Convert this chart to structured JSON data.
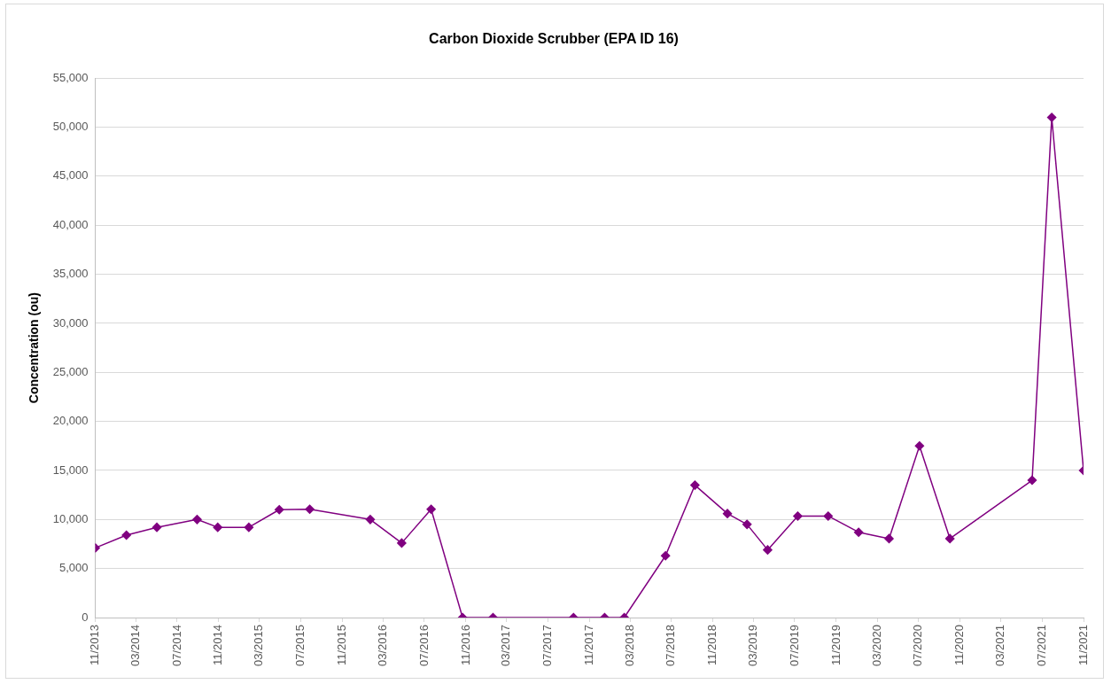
{
  "chart_data": {
    "type": "line",
    "title": "Carbon Dioxide Scrubber (EPA ID 16)",
    "ylabel": "Concentration (ou)",
    "x": [
      "2013-11-01",
      "2014-02-01",
      "2014-05-02",
      "2014-08-29",
      "2014-10-29",
      "2015-01-29",
      "2015-04-29",
      "2015-07-28",
      "2016-01-23",
      "2016-04-25",
      "2016-07-21",
      "2016-10-22",
      "2017-01-20",
      "2017-09-15",
      "2017-12-16",
      "2018-02-12",
      "2018-06-14",
      "2018-09-09",
      "2018-12-14",
      "2019-02-10",
      "2019-04-12",
      "2019-07-10",
      "2019-10-08",
      "2020-01-06",
      "2020-04-05",
      "2020-07-04",
      "2020-10-02",
      "2021-06-02",
      "2021-07-30",
      "2021-11-01"
    ],
    "series": [
      {
        "color": "#800080",
        "values": [
          7100,
          8400,
          9200,
          10000,
          9200,
          9200,
          11000,
          11050,
          10000,
          7600,
          11050,
          0,
          0,
          0,
          0,
          0,
          6300,
          13500,
          10600,
          9500,
          6900,
          10350,
          10350,
          8700,
          8050,
          17500,
          8050,
          14000,
          51000,
          15000
        ]
      }
    ],
    "xlim": [
      "2013-11-01",
      "2021-11-01"
    ],
    "xticks": [
      {
        "value": "2013-11-01",
        "label": "11/2013"
      },
      {
        "value": "2014-03-01",
        "label": "03/2014"
      },
      {
        "value": "2014-07-01",
        "label": "07/2014"
      },
      {
        "value": "2014-11-01",
        "label": "11/2014"
      },
      {
        "value": "2015-03-01",
        "label": "03/2015"
      },
      {
        "value": "2015-07-01",
        "label": "07/2015"
      },
      {
        "value": "2015-11-01",
        "label": "11/2015"
      },
      {
        "value": "2016-03-01",
        "label": "03/2016"
      },
      {
        "value": "2016-07-01",
        "label": "07/2016"
      },
      {
        "value": "2016-11-01",
        "label": "11/2016"
      },
      {
        "value": "2017-03-01",
        "label": "03/2017"
      },
      {
        "value": "2017-07-01",
        "label": "07/2017"
      },
      {
        "value": "2017-11-01",
        "label": "11/2017"
      },
      {
        "value": "2018-03-01",
        "label": "03/2018"
      },
      {
        "value": "2018-07-01",
        "label": "07/2018"
      },
      {
        "value": "2018-11-01",
        "label": "11/2018"
      },
      {
        "value": "2019-03-01",
        "label": "03/2019"
      },
      {
        "value": "2019-07-01",
        "label": "07/2019"
      },
      {
        "value": "2019-11-01",
        "label": "11/2019"
      },
      {
        "value": "2020-03-01",
        "label": "03/2020"
      },
      {
        "value": "2020-07-01",
        "label": "07/2020"
      },
      {
        "value": "2020-11-01",
        "label": "11/2020"
      },
      {
        "value": "2021-03-01",
        "label": "03/2021"
      },
      {
        "value": "2021-07-01",
        "label": "07/2021"
      },
      {
        "value": "2021-11-01",
        "label": "11/2021"
      }
    ],
    "ylim": [
      0,
      55000
    ],
    "yticks": [
      {
        "value": 0,
        "label": "0"
      },
      {
        "value": 5000,
        "label": "5,000"
      },
      {
        "value": 10000,
        "label": "10,000"
      },
      {
        "value": 15000,
        "label": "15,000"
      },
      {
        "value": 20000,
        "label": "20,000"
      },
      {
        "value": 25000,
        "label": "25,000"
      },
      {
        "value": 30000,
        "label": "30,000"
      },
      {
        "value": 35000,
        "label": "35,000"
      },
      {
        "value": 40000,
        "label": "40,000"
      },
      {
        "value": 45000,
        "label": "45,000"
      },
      {
        "value": 50000,
        "label": "50,000"
      },
      {
        "value": 55000,
        "label": "55,000"
      }
    ],
    "grid": "y",
    "legend": false,
    "marker": "diamond",
    "line_style": "solid"
  }
}
